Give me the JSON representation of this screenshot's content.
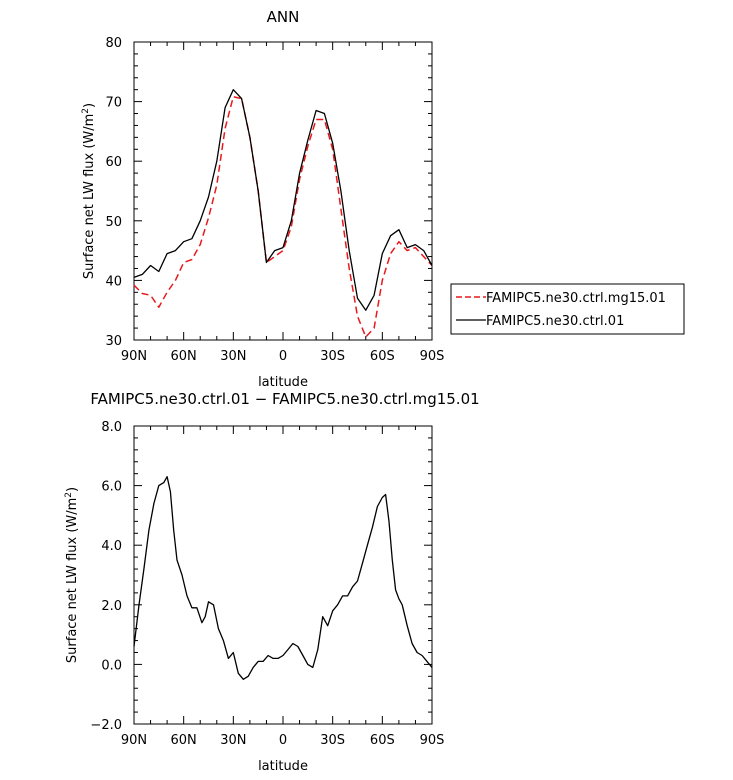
{
  "chart_data": [
    {
      "type": "line",
      "title": "ANN",
      "xlabel": "latitude",
      "ylabel": "Surface net LW flux (W/m",
      "ylabel_sup": "2",
      "ylabel_close": ")",
      "xlim": [
        90,
        -90
      ],
      "ylim": [
        30,
        80
      ],
      "x_ticks": [
        90,
        60,
        30,
        0,
        -30,
        -60,
        -90
      ],
      "x_tick_labels": [
        "90N",
        "60N",
        "30N",
        "0",
        "30S",
        "60S",
        "90S"
      ],
      "y_ticks": [
        30,
        40,
        50,
        60,
        70,
        80
      ],
      "y_tick_labels": [
        "30",
        "40",
        "50",
        "60",
        "70",
        "80"
      ],
      "legend_position": "right",
      "x": [
        90,
        85,
        80,
        75,
        70,
        65,
        60,
        55,
        50,
        45,
        40,
        35,
        30,
        25,
        20,
        15,
        10,
        5,
        0,
        -5,
        -10,
        -15,
        -20,
        -25,
        -30,
        -35,
        -40,
        -45,
        -50,
        -55,
        -60,
        -65,
        -70,
        -75,
        -80,
        -85,
        -90
      ],
      "series": [
        {
          "name": "FAMIPC5.ne30.ctrl.mg15.01",
          "color": "#e8191c",
          "dash": "dashed",
          "values": [
            39.2,
            37.8,
            37.5,
            35.5,
            38.0,
            40.0,
            43.0,
            43.5,
            46.0,
            50.5,
            56.0,
            65.5,
            70.8,
            70.5,
            64.0,
            55.0,
            43.0,
            44.0,
            45.0,
            49.0,
            57.0,
            62.5,
            67.0,
            67.0,
            62.0,
            52.0,
            42.0,
            34.0,
            30.5,
            32.0,
            40.0,
            44.5,
            46.5,
            45.0,
            45.5,
            44.0,
            42.5
          ]
        },
        {
          "name": "FAMIPC5.ne30.ctrl.01",
          "color": "#000000",
          "dash": "solid",
          "values": [
            40.5,
            41.0,
            42.5,
            41.5,
            44.5,
            45.0,
            46.5,
            47.0,
            50.0,
            54.0,
            60.0,
            69.0,
            72.0,
            70.5,
            64.0,
            55.0,
            43.0,
            45.0,
            45.5,
            50.0,
            58.0,
            63.5,
            68.5,
            68.0,
            63.0,
            55.0,
            45.0,
            37.0,
            35.0,
            37.5,
            44.5,
            47.5,
            48.5,
            45.5,
            46.0,
            45.0,
            42.5
          ]
        }
      ]
    },
    {
      "type": "line",
      "title": "FAMIPC5.ne30.ctrl.01 − FAMIPC5.ne30.ctrl.mg15.01",
      "xlabel": "latitude",
      "ylabel": "Surface net LW flux (W/m",
      "ylabel_sup": "2",
      "ylabel_close": ")",
      "xlim": [
        90,
        -90
      ],
      "ylim": [
        -2.0,
        8.0
      ],
      "x_ticks": [
        90,
        60,
        30,
        0,
        -30,
        -60,
        -90
      ],
      "x_tick_labels": [
        "90N",
        "60N",
        "30N",
        "0",
        "30S",
        "60S",
        "90S"
      ],
      "y_ticks": [
        -2,
        0,
        2,
        4,
        6,
        8
      ],
      "y_tick_labels": [
        "−2.0",
        "0.0",
        "2.0",
        "4.0",
        "6.0",
        "8.0"
      ],
      "x": [
        90,
        87,
        84,
        81,
        78,
        75,
        72,
        70,
        68,
        66,
        64,
        61,
        58,
        55,
        52,
        49,
        47,
        45,
        42,
        39,
        36,
        33,
        30,
        27,
        24,
        21,
        18,
        15,
        12,
        9,
        6,
        3,
        0,
        -3,
        -6,
        -9,
        -12,
        -15,
        -18,
        -21,
        -24,
        -27,
        -30,
        -33,
        -36,
        -39,
        -42,
        -45,
        -48,
        -51,
        -54,
        -57,
        -60,
        -62,
        -64,
        -66,
        -68,
        -70,
        -72,
        -75,
        -78,
        -81,
        -84,
        -87,
        -90
      ],
      "series": [
        {
          "name": "",
          "color": "#000000",
          "dash": "solid",
          "values": [
            0.6,
            2.0,
            3.2,
            4.5,
            5.4,
            6.0,
            6.1,
            6.3,
            5.8,
            4.5,
            3.5,
            3.0,
            2.3,
            1.9,
            1.9,
            1.4,
            1.6,
            2.1,
            2.0,
            1.2,
            0.8,
            0.2,
            0.4,
            -0.3,
            -0.5,
            -0.4,
            -0.1,
            0.1,
            0.1,
            0.3,
            0.2,
            0.2,
            0.3,
            0.5,
            0.7,
            0.6,
            0.3,
            0.0,
            -0.1,
            0.5,
            1.6,
            1.3,
            1.8,
            2.0,
            2.3,
            2.3,
            2.6,
            2.8,
            3.4,
            4.0,
            4.6,
            5.3,
            5.6,
            5.7,
            4.8,
            3.5,
            2.5,
            2.2,
            2.0,
            1.3,
            0.7,
            0.4,
            0.3,
            0.1,
            -0.1
          ]
        }
      ]
    }
  ]
}
